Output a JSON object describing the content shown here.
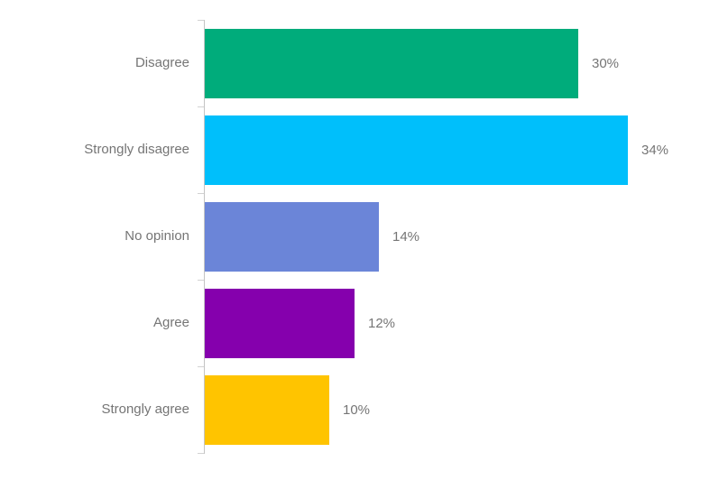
{
  "chart_data": {
    "type": "bar",
    "orientation": "horizontal",
    "title": "",
    "xlabel": "",
    "ylabel": "",
    "categories": [
      "Disagree",
      "Strongly disagree",
      "No opinion",
      "Agree",
      "Strongly agree"
    ],
    "values": [
      30,
      34,
      14,
      12,
      10
    ],
    "value_labels": [
      "30%",
      "34%",
      "14%",
      "12%",
      "10%"
    ],
    "colors": [
      "#00ac7b",
      "#00bffb",
      "#6b85d8",
      "#8500ad",
      "#ffc400"
    ],
    "xlim": [
      0,
      40
    ],
    "grid": false,
    "legend": "none",
    "label_color": "#757575",
    "axis_color": "#c4c4c4"
  }
}
